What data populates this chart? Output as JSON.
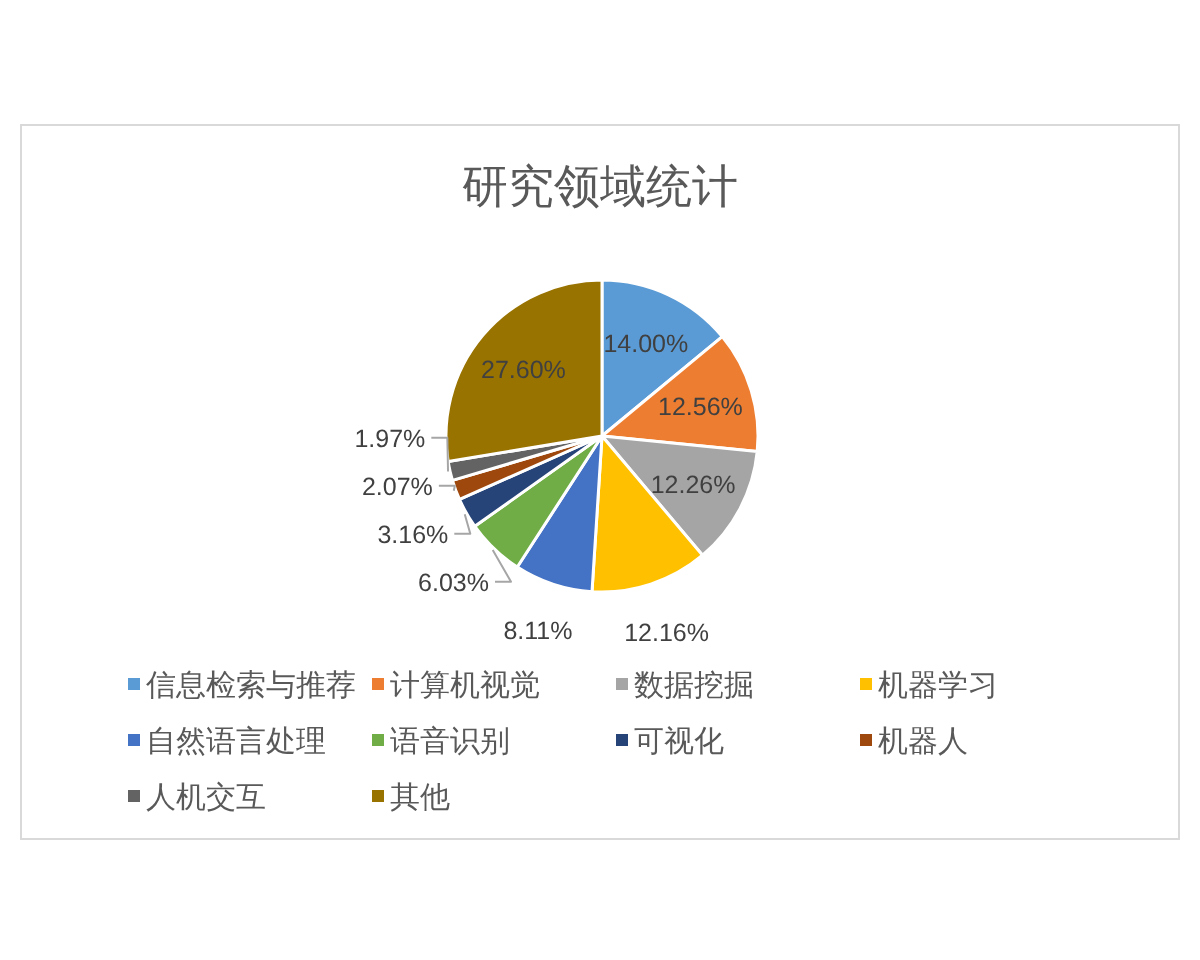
{
  "chart_data": {
    "type": "pie",
    "title": "研究领域统计",
    "categories": [
      "信息检索与推荐",
      "计算机视觉",
      "数据挖掘",
      "机器学习",
      "自然语言处理",
      "语音识别",
      "可视化",
      "机器人",
      "人机交互",
      "其他"
    ],
    "values": [
      14.0,
      12.56,
      12.26,
      12.16,
      8.11,
      6.03,
      3.16,
      2.07,
      1.97,
      27.6
    ],
    "value_labels": [
      "14.00%",
      "12.56%",
      "12.26%",
      "12.16%",
      "8.11%",
      "6.03%",
      "3.16%",
      "2.07%",
      "1.97%",
      "27.60%"
    ],
    "colors": [
      "#5b9bd5",
      "#ed7d31",
      "#a5a5a5",
      "#ffc000",
      "#4472c4",
      "#70ad47",
      "#264478",
      "#9e480e",
      "#636363",
      "#997300"
    ],
    "legend": "bottom"
  }
}
